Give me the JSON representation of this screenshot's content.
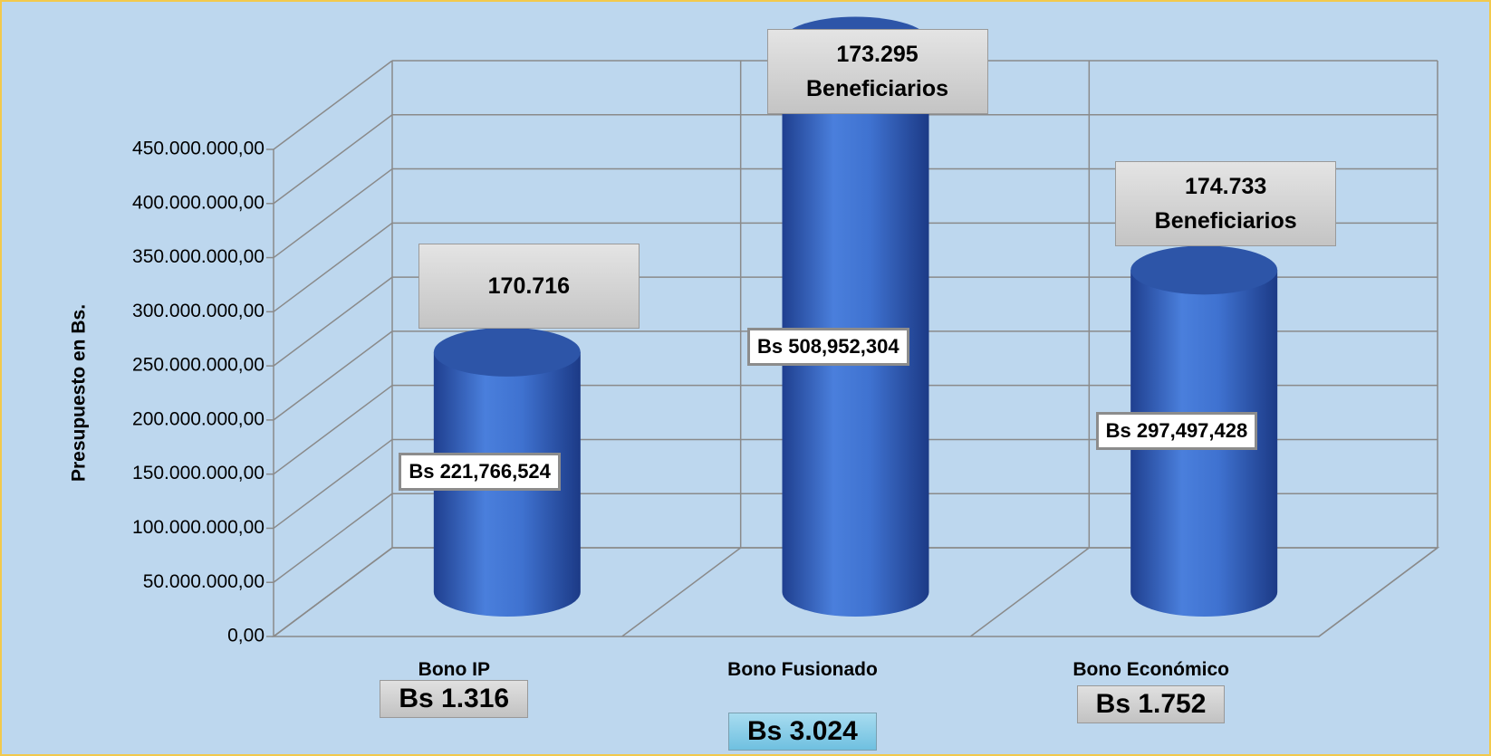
{
  "chart_data": {
    "type": "cylinder",
    "y_label": "Presupuesto en Bs.",
    "categories": [
      "Bono IP",
      "Bono Fusionado",
      "Bono Económico"
    ],
    "values": [
      221766524,
      508952304,
      297497428
    ],
    "value_labels": [
      "Bs 221,766,524",
      "Bs 508,952,304",
      "Bs 297,497,428"
    ],
    "beneficiaries": [
      "170.716",
      "173.295 Beneficiarios",
      "174.733 Beneficiarios"
    ],
    "amounts": [
      "Bs 1.316",
      "Bs 3.024",
      "Bs 1.752"
    ],
    "color": "#3f6fcf",
    "ylim": [
      0,
      450000000
    ],
    "yticks": [
      {
        "value": 0,
        "label": "0,00"
      },
      {
        "value": 50000000,
        "label": "50.000.000,00"
      },
      {
        "value": 100000000,
        "label": "100.000.000,00"
      },
      {
        "value": 150000000,
        "label": "150.000.000,00"
      },
      {
        "value": 200000000,
        "label": "200.000.000,00"
      },
      {
        "value": 250000000,
        "label": "250.000.000,00"
      },
      {
        "value": 300000000,
        "label": "300.000.000,00"
      },
      {
        "value": 350000000,
        "label": "350.000.000,00"
      },
      {
        "value": 400000000,
        "label": "400.000.000,00"
      },
      {
        "value": 450000000,
        "label": "450.000.000,00"
      }
    ],
    "grid": true
  }
}
